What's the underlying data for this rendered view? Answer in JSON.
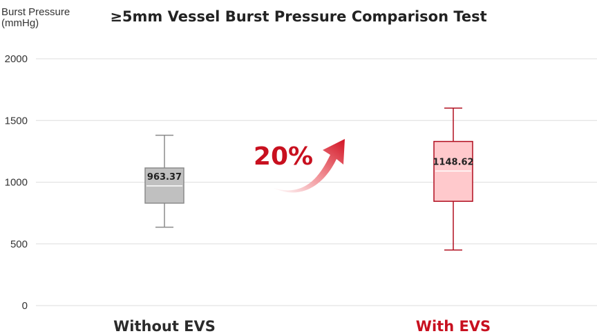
{
  "chart_data": {
    "type": "box",
    "title": "≥5mm Vessel Burst Pressure Comparison Test",
    "ylabel_line1": "Burst Pressure",
    "ylabel_line2": "(mmHg)",
    "xlabel": "",
    "ylim": [
      0,
      2000
    ],
    "yticks": [
      0,
      500,
      1000,
      1500,
      2000
    ],
    "grid": true,
    "categories": [
      "Without EVS",
      "With EVS"
    ],
    "series": [
      {
        "category": "Without EVS",
        "min": 635,
        "q1": 830,
        "median": 970,
        "q3": 1115,
        "max": 1380,
        "label": "963.37",
        "fill": "#c0c0c0",
        "stroke": "#8a8a8a",
        "label_color": "#222222"
      },
      {
        "category": "With EVS",
        "min": 450,
        "q1": 845,
        "median": 1090,
        "q3": 1330,
        "max": 1600,
        "label": "1148.62",
        "fill": "#ffc9cc",
        "stroke": "#b00d1e",
        "label_color": "#222222"
      }
    ],
    "annotation": {
      "text": "20%",
      "color": "#c8101f"
    },
    "category_colors": [
      "#2b2b2b",
      "#c8101f"
    ]
  }
}
